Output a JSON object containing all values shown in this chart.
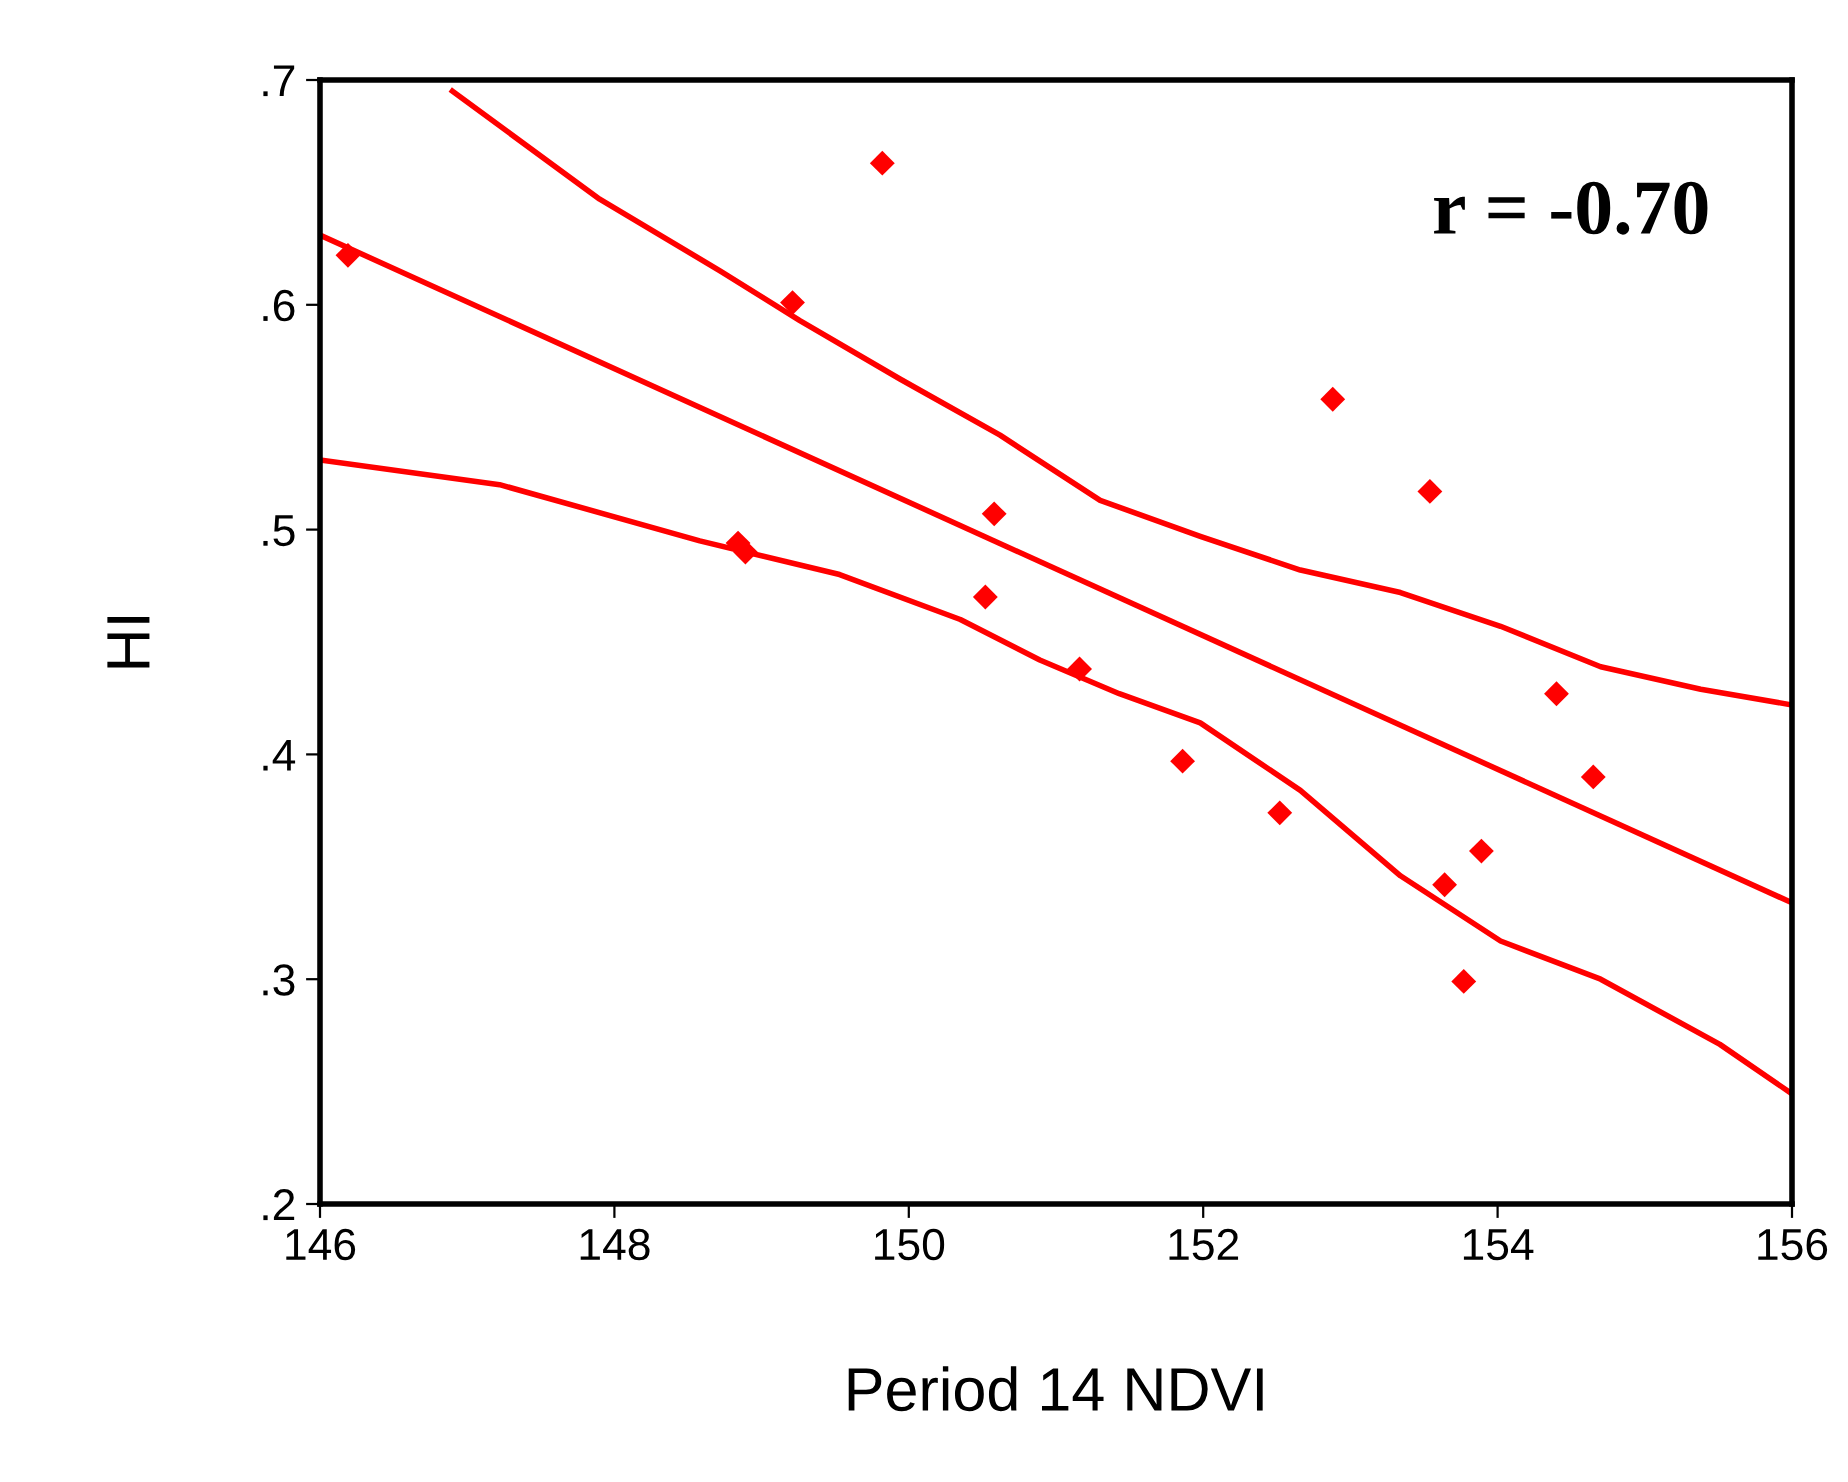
{
  "chart_data": {
    "type": "scatter",
    "xlabel": "Period 14 NDVI",
    "ylabel": "HI",
    "xlim": [
      146,
      156
    ],
    "ylim": [
      0.2,
      0.7
    ],
    "xticks": [
      146,
      148,
      150,
      152,
      154,
      156
    ],
    "yticks": [
      {
        "value": 0.2,
        "label": ".2"
      },
      {
        "value": 0.3,
        "label": ".3"
      },
      {
        "value": 0.4,
        "label": ".4"
      },
      {
        "value": 0.5,
        "label": ".5"
      },
      {
        "value": 0.6,
        "label": ".6"
      },
      {
        "value": 0.7,
        "label": ".7"
      }
    ],
    "grid": false,
    "legend": false,
    "annotations": [
      "r = -0.70"
    ],
    "series": [
      {
        "marker": "diamond",
        "color": "#ff0000",
        "x": [
          146.19,
          149.82,
          149.21,
          148.84,
          148.89,
          150.58,
          150.52,
          151.16,
          151.86,
          152.52,
          152.88,
          153.54,
          153.64,
          153.89,
          153.77,
          154.4,
          154.65
        ],
        "values": [
          0.622,
          0.663,
          0.601,
          0.494,
          0.49,
          0.507,
          0.47,
          0.438,
          0.397,
          0.374,
          0.558,
          0.517,
          0.342,
          0.357,
          0.299,
          0.427,
          0.39
        ]
      },
      {
        "type": "line",
        "color": "#ff0000",
        "x": [
          146,
          156
        ],
        "values": [
          0.631,
          0.334
        ]
      },
      {
        "type": "line",
        "color": "#ff0000",
        "x": [
          146.9,
          147.9,
          148.72,
          149.26,
          149.94,
          150.62,
          151.3,
          151.98,
          152.66,
          153.34,
          154.02,
          154.7,
          155.38,
          156
        ],
        "values": [
          0.695,
          0.647,
          0.615,
          0.593,
          0.567,
          0.542,
          0.513,
          0.497,
          0.482,
          0.472,
          0.457,
          0.439,
          0.429,
          0.422
        ]
      },
      {
        "type": "line",
        "color": "#ff0000",
        "x": [
          146,
          147.22,
          148.58,
          149.53,
          150.35,
          150.89,
          151.43,
          151.98,
          152.66,
          153.34,
          154.02,
          154.7,
          155.51,
          156
        ],
        "values": [
          0.531,
          0.52,
          0.495,
          0.48,
          0.46,
          0.442,
          0.427,
          0.414,
          0.384,
          0.346,
          0.317,
          0.3,
          0.271,
          0.249
        ]
      }
    ]
  }
}
